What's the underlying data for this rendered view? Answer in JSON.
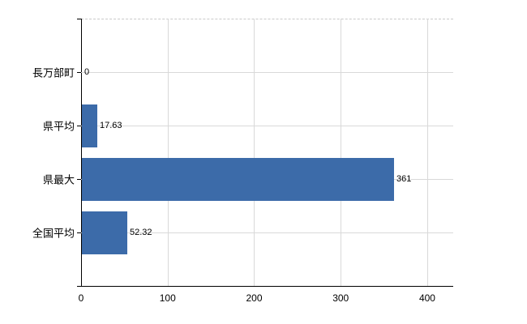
{
  "chart_data": {
    "type": "bar",
    "orientation": "horizontal",
    "title": "",
    "categories": [
      "長万部町",
      "県平均",
      "県最大",
      "全国平均"
    ],
    "values": [
      0,
      17.63,
      361,
      52.32
    ],
    "value_labels": [
      "0",
      "17.63",
      "361",
      "52.32"
    ],
    "x_tick_labels": [
      "0",
      "100",
      "200",
      "300",
      "400"
    ],
    "x_tick_values": [
      0,
      100,
      200,
      300,
      400
    ],
    "xlim": [
      0,
      430
    ],
    "grid": true,
    "legend": false,
    "bar_color": "#3c6ba9",
    "gridline_color": "#d9d9d9",
    "axis_color": "#000000",
    "top_border_style": "dashed",
    "top_border_color": "#c9c9c9",
    "background_color": "#ffffff"
  }
}
